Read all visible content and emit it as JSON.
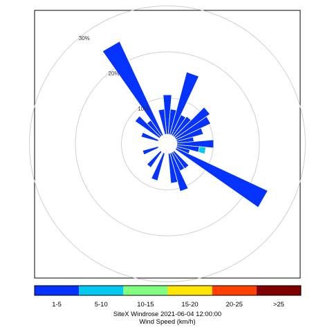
{
  "chart_data": {
    "type": "windrose",
    "title": "SiteX Windrose 2021-06-04 12:00:00",
    "legend_title": "Wind Speed (km/h)",
    "radial_unit": "%",
    "radial_ticks": [
      {
        "value": 10,
        "label": "10%"
      },
      {
        "value": 20,
        "label": "20%"
      },
      {
        "value": 30,
        "label": "30%"
      }
    ],
    "speed_bins": [
      {
        "label": "1-5",
        "color": "#0433ff"
      },
      {
        "label": "5-10",
        "color": "#00c8f0"
      },
      {
        "label": "10-15",
        "color": "#80ff80"
      },
      {
        "label": "15-20",
        "color": "#ffe600"
      },
      {
        "label": "20-25",
        "color": "#ff4000"
      },
      {
        "label": ">25",
        "color": "#800000"
      }
    ],
    "direction_step_deg": 10,
    "calm_radius_pct": 2.1,
    "sectors": [
      {
        "direction": 0,
        "values": [
          8.6
        ]
      },
      {
        "direction": 10,
        "values": [
          5.5
        ]
      },
      {
        "direction": 20,
        "values": [
          14.1
        ]
      },
      {
        "direction": 30,
        "values": [
          4.9
        ]
      },
      {
        "direction": 40,
        "values": [
          5.2
        ]
      },
      {
        "direction": 50,
        "values": [
          9.2
        ]
      },
      {
        "direction": 60,
        "values": [
          8.3
        ]
      },
      {
        "direction": 70,
        "values": [
          6.0
        ]
      },
      {
        "direction": 80,
        "values": [
          3.7
        ]
      },
      {
        "direction": 90,
        "values": [
          8.0
        ]
      },
      {
        "direction": 100,
        "values": [
          4.9,
          1.4
        ]
      },
      {
        "direction": 110,
        "values": [
          3.0
        ]
      },
      {
        "direction": 120,
        "values": [
          22.0
        ]
      },
      {
        "direction": 140,
        "values": [
          4.5
        ]
      },
      {
        "direction": 150,
        "values": [
          4.4
        ]
      },
      {
        "direction": 160,
        "values": [
          8.6
        ]
      },
      {
        "direction": 170,
        "values": [
          6.5
        ]
      },
      {
        "direction": 200,
        "values": [
          6.2
        ]
      },
      {
        "direction": 220,
        "values": [
          4.2
        ]
      },
      {
        "direction": 250,
        "values": [
          3.5
        ]
      },
      {
        "direction": 290,
        "values": [
          3.8
        ]
      },
      {
        "direction": 310,
        "values": [
          6.5
        ]
      },
      {
        "direction": 320,
        "values": [
          4.2
        ]
      },
      {
        "direction": 330,
        "values": [
          22.5
        ]
      },
      {
        "direction": 350,
        "values": [
          5.5
        ]
      }
    ]
  }
}
